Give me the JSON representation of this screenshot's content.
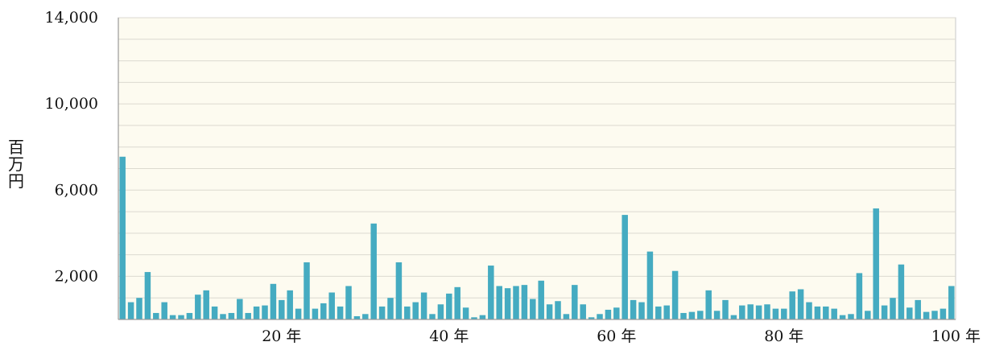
{
  "chart_data": {
    "type": "bar",
    "ylabel": "百万円",
    "ylim": [
      0,
      14000
    ],
    "grid": true,
    "y_ticks": [
      {
        "value": 2000,
        "label": "2,000"
      },
      {
        "value": 6000,
        "label": "6,000"
      },
      {
        "value": 10000,
        "label": "10,000"
      },
      {
        "value": 14000,
        "label": "14,000"
      }
    ],
    "x_ticks": [
      {
        "value": 20,
        "label": "20 年"
      },
      {
        "value": 40,
        "label": "40 年"
      },
      {
        "value": 60,
        "label": "60 年"
      },
      {
        "value": 80,
        "label": "80 年"
      },
      {
        "value": 100,
        "label": "100 年"
      }
    ],
    "x": [
      1,
      2,
      3,
      4,
      5,
      6,
      7,
      8,
      9,
      10,
      11,
      12,
      13,
      14,
      15,
      16,
      17,
      18,
      19,
      20,
      21,
      22,
      23,
      24,
      25,
      26,
      27,
      28,
      29,
      30,
      31,
      32,
      33,
      34,
      35,
      36,
      37,
      38,
      39,
      40,
      41,
      42,
      43,
      44,
      45,
      46,
      47,
      48,
      49,
      50,
      51,
      52,
      53,
      54,
      55,
      56,
      57,
      58,
      59,
      60,
      61,
      62,
      63,
      64,
      65,
      66,
      67,
      68,
      69,
      70,
      71,
      72,
      73,
      74,
      75,
      76,
      77,
      78,
      79,
      80,
      81,
      82,
      83,
      84,
      85,
      86,
      87,
      88,
      89,
      90,
      91,
      92,
      93,
      94,
      95,
      96,
      97,
      98,
      99,
      100
    ],
    "values": [
      7550,
      800,
      1000,
      2200,
      300,
      800,
      200,
      200,
      300,
      1150,
      1350,
      600,
      250,
      300,
      950,
      300,
      600,
      650,
      1650,
      900,
      1350,
      500,
      2650,
      500,
      750,
      1250,
      600,
      1550,
      150,
      250,
      4450,
      600,
      1000,
      2650,
      600,
      800,
      1250,
      250,
      700,
      1200,
      1500,
      550,
      100,
      200,
      2500,
      1550,
      1450,
      1550,
      1600,
      950,
      1800,
      700,
      850,
      250,
      1600,
      700,
      100,
      250,
      450,
      550,
      4850,
      900,
      800,
      3150,
      600,
      650,
      2250,
      300,
      350,
      400,
      1350,
      400,
      900,
      200,
      650,
      700,
      650,
      700,
      500,
      500,
      1300,
      1400,
      800,
      600,
      600,
      500,
      200,
      250,
      2150,
      400,
      5150,
      650,
      1000,
      2550,
      550,
      900,
      350,
      400,
      500,
      1550
    ]
  },
  "colors": {
    "bar": "#45abc1",
    "plot_bg": "#fdfbf0",
    "grid": "#dcdad0",
    "axis": "#9a9a9a",
    "frame": "#c8c8c8"
  }
}
